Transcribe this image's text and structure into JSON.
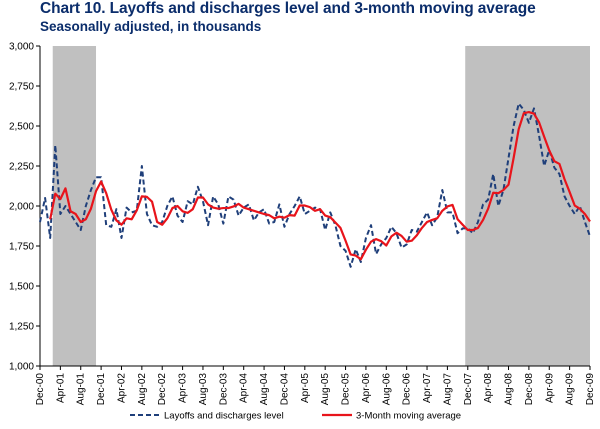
{
  "chart_data": {
    "type": "line",
    "title": "Chart 10. Layoffs and discharges level and 3-month moving average",
    "subtitle": "Seasonally adjusted, in thousands",
    "ylim": [
      1000,
      3000
    ],
    "yticks": [
      "1,000",
      "1,250",
      "1,500",
      "1,750",
      "2,000",
      "2,250",
      "2,500",
      "2,750",
      "3,000"
    ],
    "ytick_values": [
      1000,
      1250,
      1500,
      1750,
      2000,
      2250,
      2500,
      2750,
      3000
    ],
    "xtick_labels": [
      "Dec-00",
      "Apr-01",
      "Aug-01",
      "Dec-01",
      "Apr-02",
      "Aug-02",
      "Dec-02",
      "Apr-03",
      "Aug-03",
      "Dec-03",
      "Apr-04",
      "Aug-04",
      "Dec-04",
      "Apr-05",
      "Aug-05",
      "Dec-05",
      "Apr-06",
      "Aug-06",
      "Dec-06",
      "Apr-07",
      "Aug-07",
      "Dec-07",
      "Apr-08",
      "Aug-08",
      "Dec-08",
      "Apr-09",
      "Aug-09",
      "Dec-09"
    ],
    "x_start": "Dec-00",
    "recessions": [
      {
        "start": "Mar-01",
        "end": "Nov-01"
      },
      {
        "start": "Dec-07",
        "end": "Feb-10"
      }
    ],
    "colors": {
      "layoffs": "#1f3f7a",
      "moving_average": "#e8141b",
      "recession": "#c0c0c0"
    },
    "series": [
      {
        "name": "Layoffs and discharges level",
        "style": "dashed",
        "values": [
          1900,
          2050,
          1800,
          2380,
          1950,
          2000,
          1950,
          1900,
          1850,
          2000,
          2100,
          2180,
          2180,
          1880,
          1870,
          1980,
          1800,
          1990,
          1960,
          1970,
          2250,
          1950,
          1880,
          1870,
          1900,
          2000,
          2060,
          1940,
          1900,
          2030,
          2010,
          2120,
          2030,
          1880,
          2060,
          2010,
          1890,
          2060,
          2040,
          1940,
          1990,
          2010,
          1910,
          1960,
          1980,
          1890,
          1900,
          2010,
          1870,
          1950,
          2000,
          2060,
          1950,
          1970,
          1990,
          1980,
          1850,
          1960,
          1880,
          1750,
          1720,
          1620,
          1730,
          1650,
          1800,
          1880,
          1700,
          1760,
          1800,
          1870,
          1830,
          1740,
          1760,
          1850,
          1840,
          1900,
          1960,
          1880,
          1930,
          2100,
          1960,
          1960,
          1830,
          1860,
          1860,
          1830,
          1900,
          2010,
          2040,
          2200,
          2000,
          2100,
          2300,
          2500,
          2640,
          2600,
          2520,
          2610,
          2440,
          2250,
          2350,
          2240,
          2200,
          2060,
          2000,
          1950,
          2000,
          1900,
          1810
        ]
      },
      {
        "name": "3-Month moving average",
        "style": "solid",
        "values": [
          null,
          null,
          1917,
          2077,
          2043,
          2110,
          1967,
          1950,
          1900,
          1917,
          1983,
          2093,
          2153,
          2080,
          1977,
          1910,
          1883,
          1923,
          1917,
          1973,
          2060,
          2057,
          2027,
          1900,
          1883,
          1923,
          1987,
          2000,
          1967,
          1957,
          1980,
          2053,
          2053,
          2010,
          1990,
          1983,
          1987,
          1987,
          1997,
          2013,
          1990,
          1980,
          1970,
          1960,
          1950,
          1943,
          1923,
          1933,
          1927,
          1943,
          1940,
          2003,
          2003,
          1993,
          1970,
          1980,
          1940,
          1930,
          1897,
          1863,
          1783,
          1697,
          1690,
          1667,
          1727,
          1777,
          1793,
          1780,
          1753,
          1810,
          1833,
          1813,
          1777,
          1783,
          1817,
          1863,
          1900,
          1913,
          1923,
          1970,
          1997,
          2007,
          1917,
          1883,
          1850,
          1850,
          1863,
          1913,
          1983,
          2083,
          2080,
          2100,
          2133,
          2300,
          2480,
          2580,
          2587,
          2577,
          2523,
          2433,
          2347,
          2280,
          2263,
          2167,
          2087,
          2003,
          1983,
          1950,
          1903
        ]
      }
    ],
    "legend_position": "bottom",
    "grid": {
      "horizontal": false,
      "vertical": false
    }
  }
}
